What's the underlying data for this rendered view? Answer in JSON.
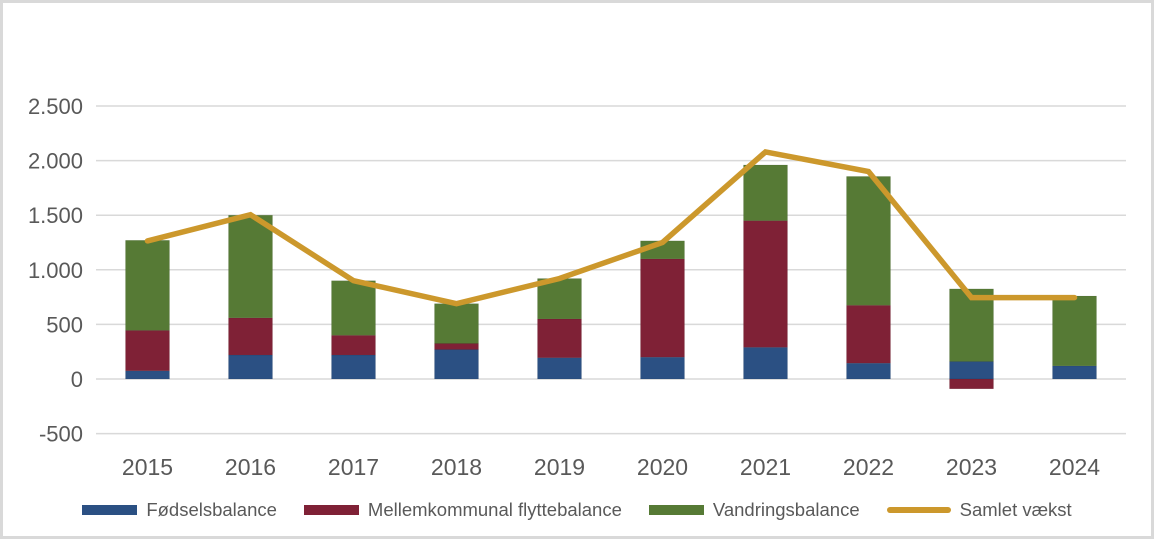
{
  "colors": {
    "background": "#ffffff",
    "frame_border": "#d9d9d9",
    "gridline": "#d9d9d9",
    "axis_text": "#595959",
    "legend_text": "#595959",
    "birth_balance": "#2b5083",
    "intermunicipal_balance": "#7f2136",
    "migration_balance": "#567a35",
    "total_growth_line": "#cc982c"
  },
  "chart_data": {
    "type": "bar",
    "subtype": "stacked-bar-with-line",
    "title": "",
    "xlabel": "",
    "ylabel": "",
    "grid": true,
    "legend_position": "bottom",
    "categories": [
      "2015",
      "2016",
      "2017",
      "2018",
      "2019",
      "2020",
      "2021",
      "2022",
      "2023",
      "2024"
    ],
    "series": [
      {
        "name": "Fødselsbalance",
        "type": "bar",
        "color": "#2b5083",
        "values": [
          75,
          220,
          220,
          270,
          195,
          200,
          290,
          145,
          160,
          120
        ]
      },
      {
        "name": "Mellemkommunal flyttebalance",
        "type": "bar",
        "color": "#7f2136",
        "values": [
          370,
          340,
          180,
          55,
          355,
          900,
          1160,
          530,
          -90,
          0
        ]
      },
      {
        "name": "Vandringsbalance",
        "type": "bar",
        "color": "#567a35",
        "values": [
          825,
          940,
          500,
          365,
          370,
          165,
          510,
          1180,
          665,
          640
        ]
      },
      {
        "name": "Samlet vækst",
        "type": "line",
        "color": "#cc982c",
        "values": [
          1265,
          1505,
          900,
          690,
          920,
          1250,
          2080,
          1900,
          745,
          745
        ]
      }
    ],
    "y_axis": {
      "min": -500,
      "max": 2500,
      "tick_step": 500,
      "tick_values": [
        2500,
        2000,
        1500,
        1000,
        500,
        0,
        -500
      ],
      "tick_labels": [
        "2.500",
        "2.000",
        "1.500",
        "1.000",
        "500",
        "0",
        "-500"
      ]
    }
  }
}
